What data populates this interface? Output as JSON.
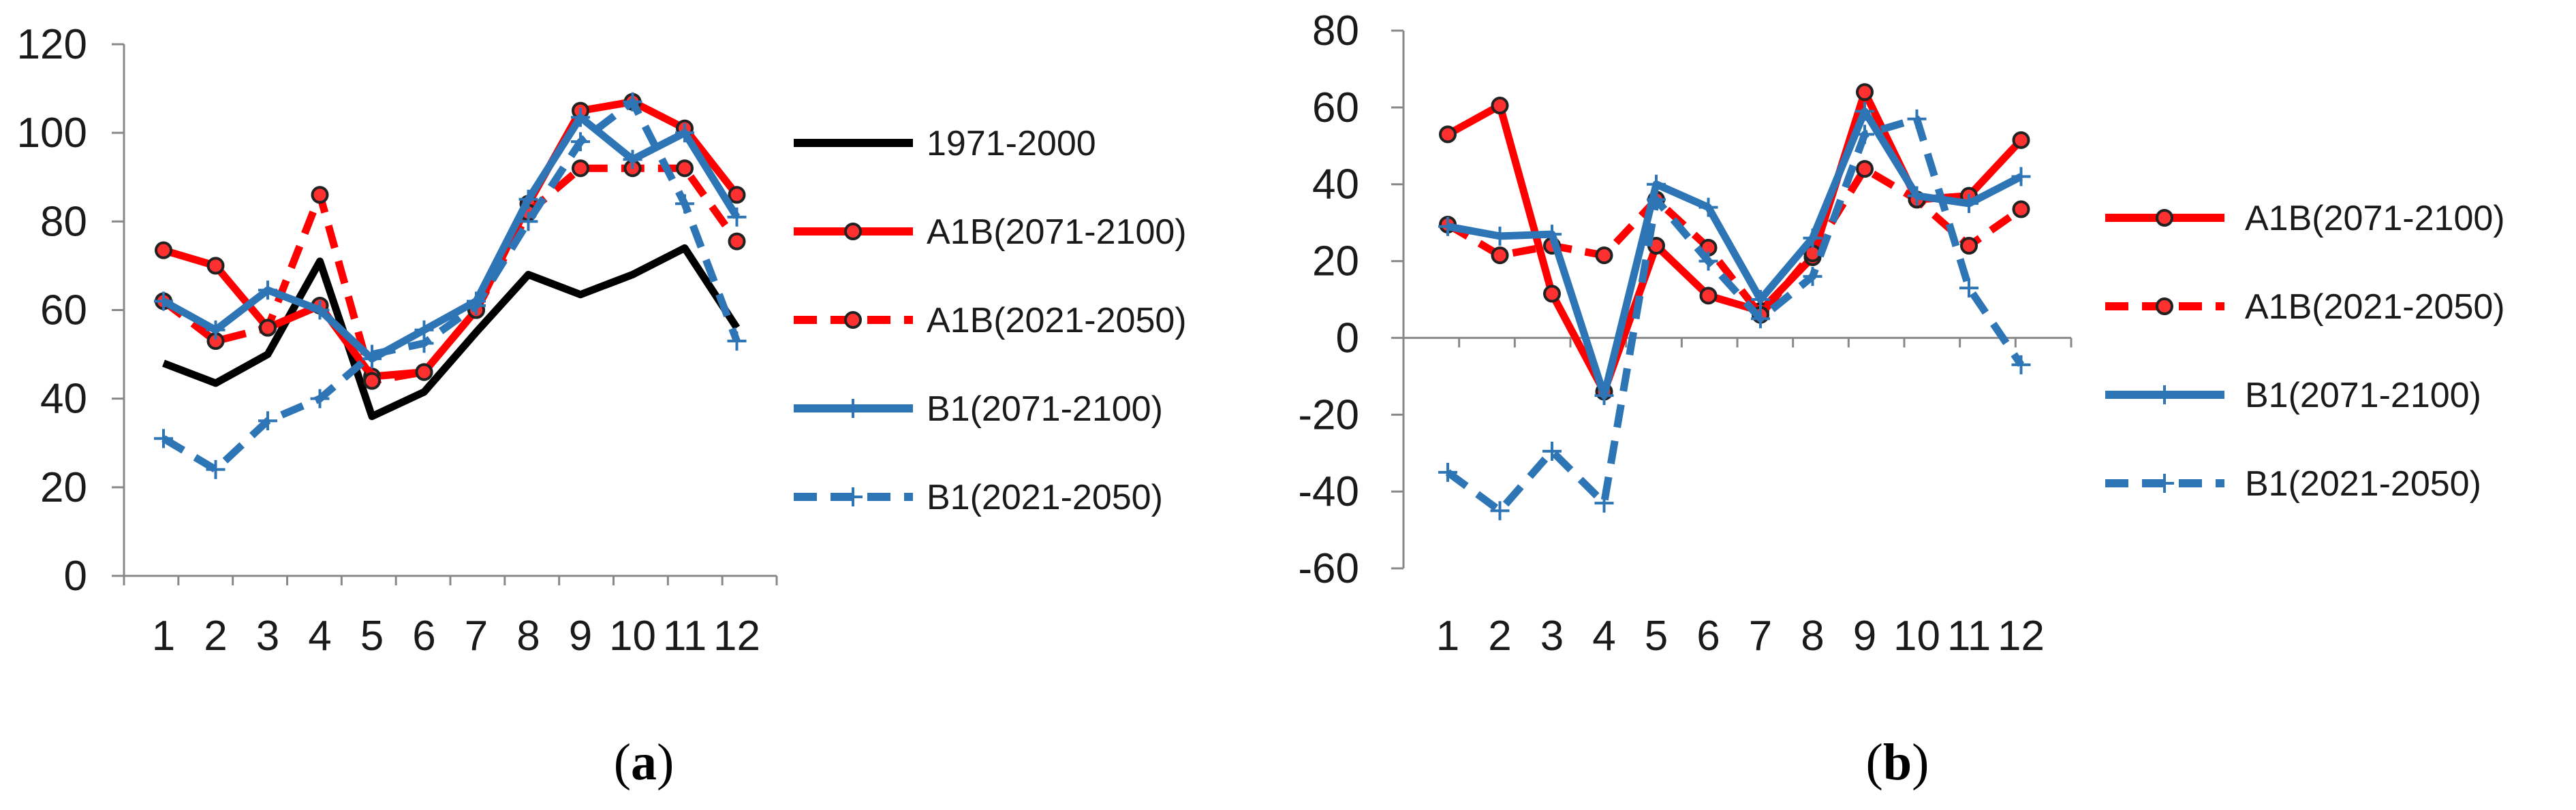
{
  "chart_data": [
    {
      "type": "line",
      "panel_label": "a",
      "categories": [
        "1",
        "2",
        "3",
        "4",
        "5",
        "6",
        "7",
        "8",
        "9",
        "10",
        "11",
        "12"
      ],
      "xtick_labels": [
        "1",
        "2",
        "3",
        "4",
        "5",
        "6",
        "7",
        "8",
        "9",
        "10",
        "11",
        "12"
      ],
      "ylim": [
        0,
        120
      ],
      "yticks": [
        0,
        20,
        40,
        60,
        80,
        100,
        120
      ],
      "legend_position": "right",
      "series": [
        {
          "name": "1971-2000",
          "color": "#000000",
          "dash": false,
          "marker": "none",
          "values": [
            48,
            43.5,
            50,
            71,
            36,
            41.5,
            55,
            68,
            63.5,
            68,
            74,
            56
          ]
        },
        {
          "name": "A1B(2071-2100)",
          "color": "#ff0000",
          "dash": false,
          "marker": "circle",
          "values": [
            73.5,
            70,
            56,
            61,
            45,
            46,
            60,
            84,
            105,
            107,
            101,
            86
          ]
        },
        {
          "name": "A1B(2021-2050)",
          "color": "#ff0000",
          "dash": true,
          "marker": "circle",
          "values": [
            62,
            53,
            56,
            86,
            44,
            46,
            60,
            82,
            92,
            92,
            92,
            75.5
          ]
        },
        {
          "name": "B1(2071-2100)",
          "color": "#2e75b6",
          "dash": false,
          "marker": "plus",
          "values": [
            62,
            55.5,
            64.5,
            60,
            49,
            55.5,
            62,
            85,
            103.5,
            94,
            100,
            81
          ]
        },
        {
          "name": "B1(2021-2050)",
          "color": "#2e75b6",
          "dash": true,
          "marker": "plus",
          "values": [
            31,
            24,
            35,
            40,
            50,
            52.5,
            61,
            80,
            98,
            107,
            84,
            53
          ]
        }
      ]
    },
    {
      "type": "line",
      "panel_label": "b",
      "categories": [
        "1",
        "2",
        "3",
        "4",
        "5",
        "6",
        "7",
        "8",
        "9",
        "10",
        "11",
        "12"
      ],
      "xtick_labels": [
        "1",
        "2",
        "3",
        "4",
        "5",
        "6",
        "7",
        "8",
        "9",
        "10",
        "11",
        "12"
      ],
      "ylim": [
        -60,
        80
      ],
      "yticks": [
        -60,
        -40,
        -20,
        0,
        20,
        40,
        60,
        80
      ],
      "legend_position": "right",
      "series": [
        {
          "name": "A1B(2071-2100)",
          "color": "#ff0000",
          "dash": false,
          "marker": "circle",
          "values": [
            53,
            60.5,
            11.5,
            -14,
            24,
            11,
            7,
            21,
            64,
            36,
            37,
            51.5
          ]
        },
        {
          "name": "A1B(2021-2050)",
          "color": "#ff0000",
          "dash": true,
          "marker": "circle",
          "values": [
            29.5,
            21.5,
            24,
            21.5,
            36,
            23.5,
            6,
            22,
            44,
            36,
            24,
            33.5
          ]
        },
        {
          "name": "B1(2071-2100)",
          "color": "#2e75b6",
          "dash": false,
          "marker": "plus",
          "values": [
            29,
            26.5,
            27,
            -15,
            40,
            34,
            10,
            26,
            59,
            37,
            35,
            42
          ]
        },
        {
          "name": "B1(2021-2050)",
          "color": "#2e75b6",
          "dash": true,
          "marker": "plus",
          "values": [
            -35,
            -45,
            -29.5,
            -43,
            36,
            20,
            5,
            16,
            53,
            57,
            13,
            -7
          ]
        }
      ]
    }
  ]
}
